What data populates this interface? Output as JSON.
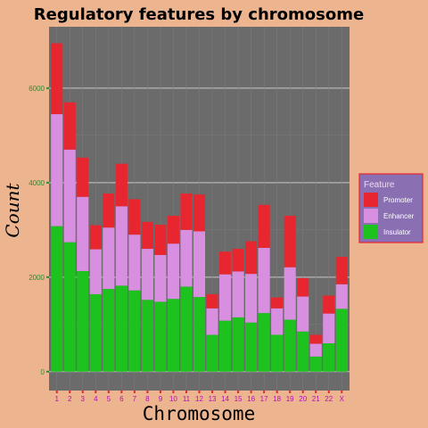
{
  "chart_data": {
    "type": "bar",
    "stacked": true,
    "title": "Regulatory features by chromosome",
    "xlabel": "Chromosome",
    "ylabel": "Count",
    "ylim": [
      -400,
      7300
    ],
    "yticks": [
      0,
      2000,
      4000,
      6000
    ],
    "grid": true,
    "legend": {
      "title": "Feature",
      "placement": "right"
    },
    "categories": [
      "1",
      "2",
      "3",
      "4",
      "5",
      "6",
      "7",
      "8",
      "9",
      "10",
      "11",
      "12",
      "13",
      "14",
      "15",
      "16",
      "17",
      "18",
      "19",
      "20",
      "21",
      "22",
      "X"
    ],
    "series": [
      {
        "name": "Insulator",
        "color": "#1ec21e",
        "values": [
          3080,
          2740,
          2130,
          1640,
          1750,
          1820,
          1720,
          1520,
          1480,
          1540,
          1800,
          1580,
          780,
          1080,
          1150,
          1040,
          1240,
          780,
          1100,
          850,
          320,
          600,
          1330
        ]
      },
      {
        "name": "Enhancer",
        "color": "#d98fe0",
        "values": [
          2370,
          1960,
          1570,
          950,
          1300,
          1680,
          1180,
          1080,
          990,
          1170,
          1200,
          1390,
          560,
          980,
          970,
          1030,
          1380,
          560,
          1110,
          740,
          270,
          630,
          520
        ]
      },
      {
        "name": "Promoter",
        "color": "#e8262f",
        "values": [
          1500,
          1000,
          830,
          510,
          720,
          900,
          750,
          570,
          640,
          590,
          770,
          780,
          300,
          480,
          480,
          690,
          910,
          230,
          1090,
          390,
          190,
          380,
          580
        ]
      }
    ]
  }
}
